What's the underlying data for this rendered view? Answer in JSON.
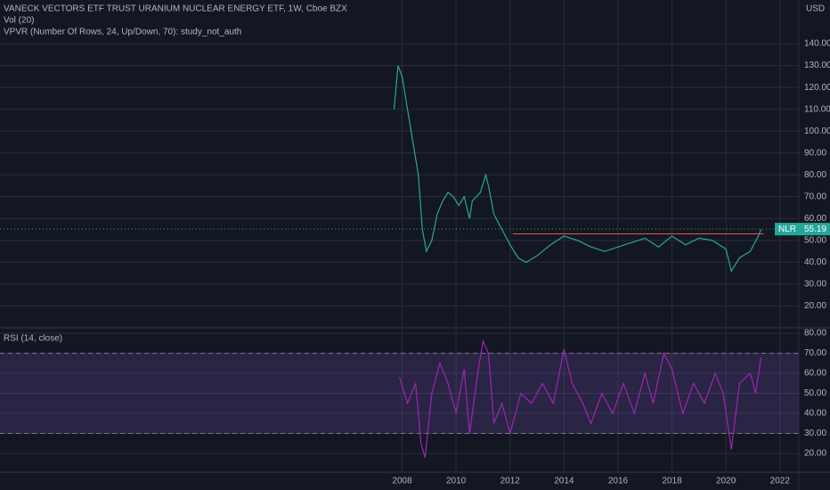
{
  "chart_data": {
    "type": "line",
    "title": "VANECK VECTORS ETF TRUST URANIUM NUCLEAR ENERGY ETF, 1W, Cboe BZX",
    "indicators": [
      "Vol (20)",
      "VPVR (Number Of Rows, 24, Up/Down, 70): study_not_auth"
    ],
    "currency": "USD",
    "symbol": "NLR",
    "last_value_label": "55.19",
    "xlim": [
      1993.1,
      2022.7
    ],
    "xticks": [
      2008,
      2010,
      2012,
      2014,
      2016,
      2018,
      2020,
      2022
    ],
    "ylim": [
      10,
      160
    ],
    "yticks": [
      {
        "value": 20,
        "label": "20.00"
      },
      {
        "value": 30,
        "label": "30.00"
      },
      {
        "value": 40,
        "label": "40.00"
      },
      {
        "value": 50,
        "label": "50.00"
      },
      {
        "value": 60,
        "label": "60.00"
      },
      {
        "value": 70,
        "label": "70.00"
      },
      {
        "value": 80,
        "label": "80.00"
      },
      {
        "value": 90,
        "label": "90.00"
      },
      {
        "value": 100,
        "label": "100.00"
      },
      {
        "value": 110,
        "label": "110.00"
      },
      {
        "value": 120,
        "label": "120.00"
      },
      {
        "value": 130,
        "label": "130.00"
      },
      {
        "value": 140,
        "label": "140.00"
      }
    ],
    "grid": true,
    "series": [
      {
        "name": "NLR",
        "color": "#26a69a",
        "x": [
          2007.7,
          2007.85,
          2008.0,
          2008.2,
          2008.4,
          2008.6,
          2008.75,
          2008.9,
          2009.1,
          2009.3,
          2009.5,
          2009.7,
          2009.9,
          2010.1,
          2010.3,
          2010.5,
          2010.6,
          2010.9,
          2011.1,
          2011.2,
          2011.4,
          2011.7,
          2012.0,
          2012.3,
          2012.6,
          2013.0,
          2013.5,
          2014.0,
          2014.5,
          2015.0,
          2015.5,
          2016.0,
          2016.5,
          2017.0,
          2017.5,
          2018.0,
          2018.5,
          2019.0,
          2019.5,
          2020.0,
          2020.2,
          2020.5,
          2020.9,
          2021.2,
          2021.3
        ],
        "values": [
          110,
          130,
          125,
          110,
          95,
          80,
          55,
          45,
          50,
          62,
          68,
          72,
          70,
          66,
          70,
          60,
          68,
          72,
          80,
          75,
          62,
          55,
          48,
          42,
          40,
          43,
          48,
          52,
          50,
          47,
          45,
          47,
          49,
          51,
          47,
          52,
          48,
          51,
          50,
          46,
          36,
          42,
          45,
          52,
          55.19
        ]
      }
    ],
    "hline": {
      "value": 53,
      "from": 2012.1,
      "to": 2021.4,
      "color": "#ef5350"
    },
    "rsi": {
      "label": "RSI (14, close)",
      "color": "#9c27b0",
      "ylim": [
        10.7,
        82.2
      ],
      "yticks": [
        {
          "value": 20,
          "label": "20.00"
        },
        {
          "value": 30,
          "label": "30.00"
        },
        {
          "value": 40,
          "label": "40.00"
        },
        {
          "value": 50,
          "label": "50.00"
        },
        {
          "value": 60,
          "label": "60.00"
        },
        {
          "value": 70,
          "label": "70.00"
        },
        {
          "value": 80,
          "label": "80.00"
        }
      ],
      "band": [
        30,
        70
      ],
      "x": [
        2007.9,
        2008.2,
        2008.5,
        2008.7,
        2008.85,
        2009.1,
        2009.4,
        2009.7,
        2010.0,
        2010.3,
        2010.5,
        2010.8,
        2011.0,
        2011.2,
        2011.4,
        2011.7,
        2012.0,
        2012.4,
        2012.8,
        2013.2,
        2013.6,
        2014.0,
        2014.3,
        2014.7,
        2015.0,
        2015.4,
        2015.8,
        2016.2,
        2016.6,
        2017.0,
        2017.3,
        2017.7,
        2018.0,
        2018.4,
        2018.8,
        2019.2,
        2019.6,
        2019.9,
        2020.2,
        2020.5,
        2020.9,
        2021.1,
        2021.3
      ],
      "values": [
        58,
        45,
        55,
        25,
        18,
        50,
        65,
        55,
        40,
        62,
        30,
        60,
        76,
        70,
        35,
        45,
        30,
        50,
        45,
        55,
        45,
        72,
        55,
        45,
        35,
        50,
        40,
        55,
        40,
        60,
        45,
        70,
        62,
        40,
        55,
        45,
        60,
        50,
        22,
        55,
        60,
        50,
        68
      ]
    }
  }
}
